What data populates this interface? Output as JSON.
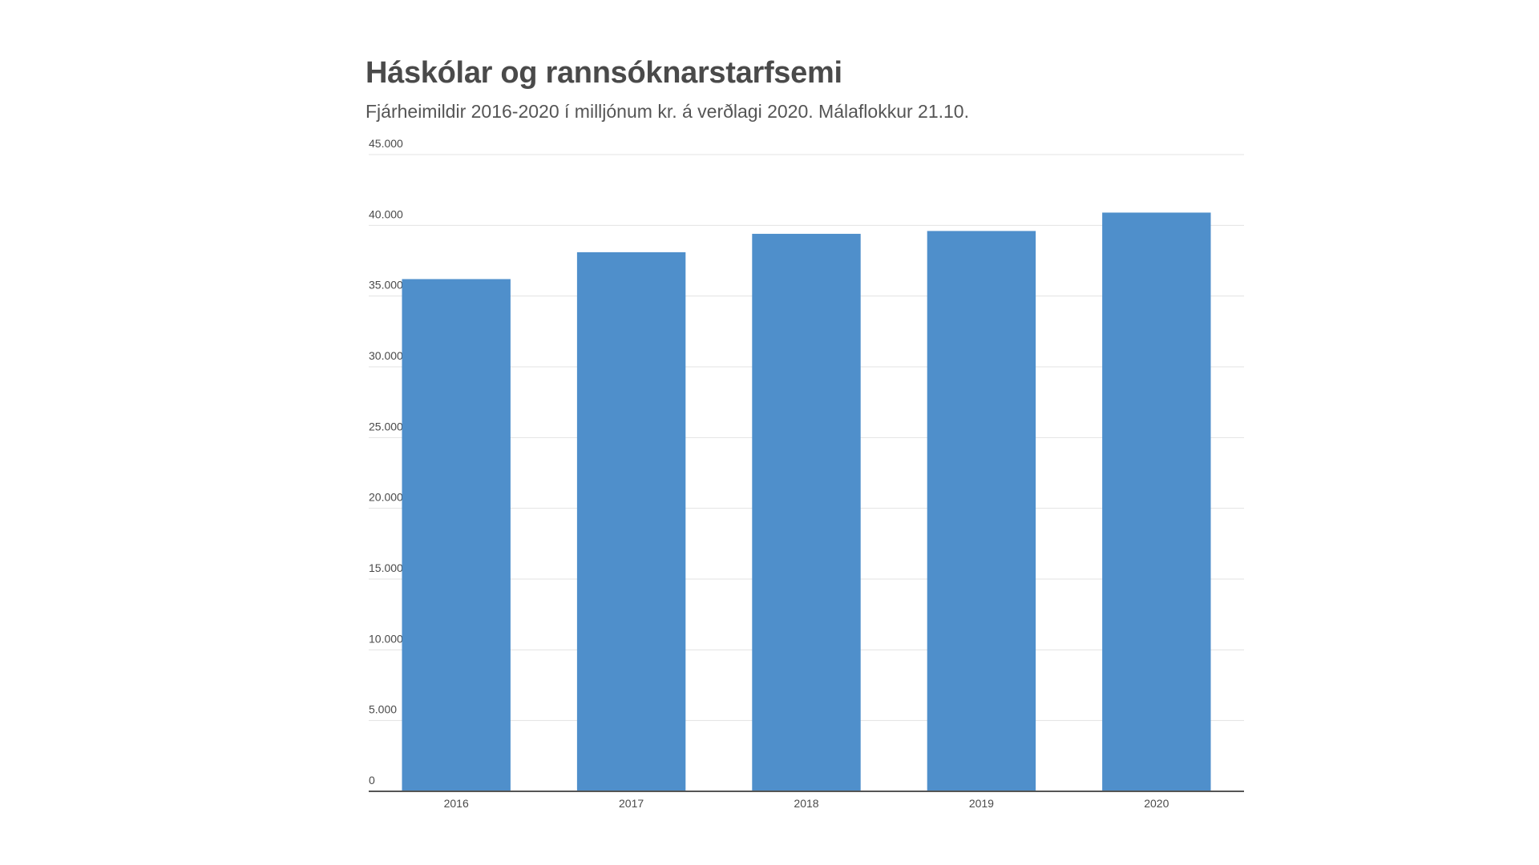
{
  "chart_data": {
    "type": "bar",
    "title": "Háskólar og rannsóknarstarfsemi",
    "subtitle": "Fjárheimildir 2016-2020 í milljónum kr. á verðlagi 2020. Málaflokkur 21.10.",
    "categories": [
      "2016",
      "2017",
      "2018",
      "2019",
      "2020"
    ],
    "values": [
      36200,
      38100,
      39400,
      39600,
      40900
    ],
    "ylim": [
      0,
      45000
    ],
    "yticks": [
      0,
      5000,
      10000,
      15000,
      20000,
      25000,
      30000,
      35000,
      40000,
      45000
    ],
    "ytick_labels": [
      "0",
      "5.000",
      "10.000",
      "15.000",
      "20.000",
      "25.000",
      "30.000",
      "35.000",
      "40.000",
      "45.000"
    ],
    "grid": true,
    "bar_color": "#4f8fcb",
    "grid_color": "#e3e3e3",
    "axis_color": "#555555",
    "text_color": "#4a4a4a"
  }
}
